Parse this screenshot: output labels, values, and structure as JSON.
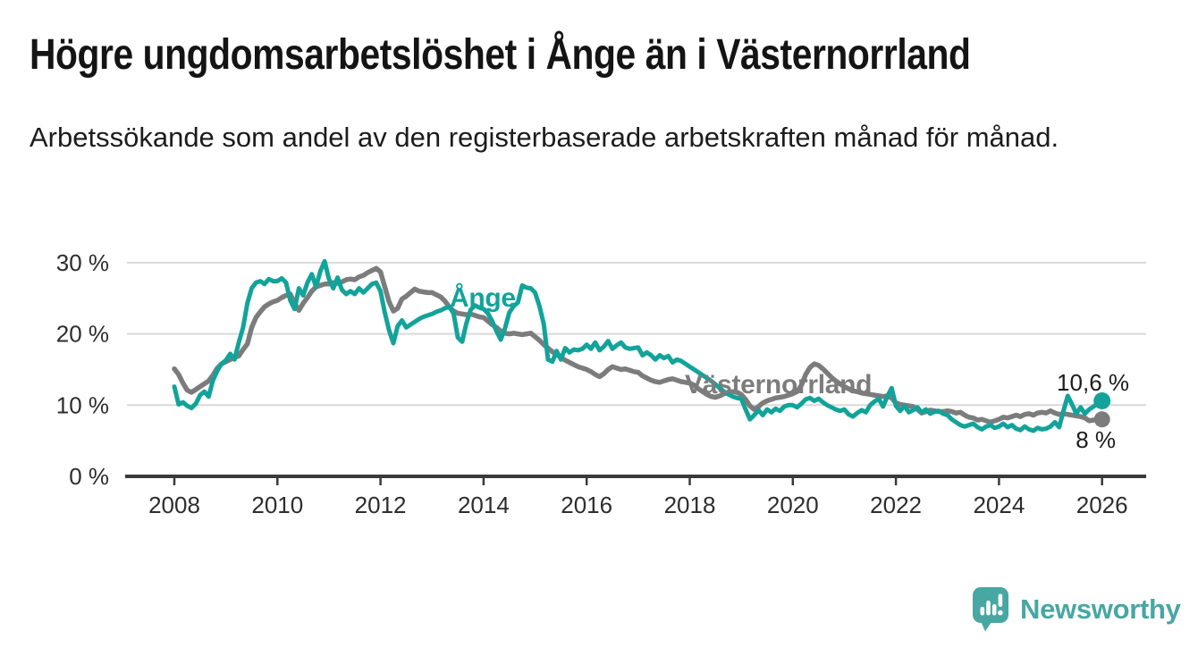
{
  "header": {
    "title": "Högre ungdomsarbetslöshet i Ånge än i Västernorrland",
    "subtitle": "Arbetssökande som andel av den registerbaserade arbetskraften månad för månad."
  },
  "chart_data": {
    "type": "line",
    "title": "Högre ungdomsarbetslöshet i Ånge än i Västernorrland",
    "unit": "%",
    "grid": "horizontal",
    "legend": "inline-series-labels",
    "colors": {
      "ange": "#12a39a",
      "vasternorrland": "#7c7c7c",
      "gridline": "#d9d9d9",
      "axis": "#3a3a3a",
      "tick_text": "#2d2d2d",
      "value_text": "#1c1c1c"
    },
    "x_axis": {
      "start_year": 2008,
      "end_year": 2026,
      "points_per_year": 12,
      "tick_years": [
        2008,
        2010,
        2012,
        2014,
        2016,
        2018,
        2020,
        2022,
        2024,
        2026
      ]
    },
    "y_axis": {
      "range": [
        0,
        32
      ],
      "ticks": [
        {
          "v": 0,
          "label": "0 %"
        },
        {
          "v": 10,
          "label": "10 %"
        },
        {
          "v": 20,
          "label": "20 %"
        },
        {
          "v": 30,
          "label": "30 %"
        }
      ]
    },
    "series": [
      {
        "name": "Ånge",
        "color": "#12a39a",
        "end_label": "10,6 %",
        "last_value": 10.6,
        "values": [
          12.6,
          10.1,
          10.4,
          9.9,
          9.6,
          10.2,
          11.4,
          11.9,
          11.2,
          13.5,
          14.8,
          15.8,
          16.3,
          17.2,
          16.4,
          18.8,
          20.9,
          24.3,
          26.4,
          27.2,
          27.4,
          27.0,
          27.7,
          27.4,
          27.4,
          27.8,
          27.2,
          24.7,
          23.5,
          26.4,
          25.4,
          27.2,
          28.4,
          26.6,
          28.8,
          30.2,
          27.7,
          26.4,
          27.9,
          26.2,
          25.6,
          26.0,
          25.6,
          26.4,
          25.8,
          26.4,
          27.0,
          27.2,
          26.0,
          23.0,
          20.5,
          18.7,
          21.1,
          21.9,
          20.9,
          21.3,
          21.7,
          22.1,
          22.4,
          22.6,
          22.8,
          23.1,
          23.3,
          23.6,
          23.8,
          22.9,
          19.5,
          18.9,
          21.5,
          23.4,
          24.0,
          23.7,
          23.5,
          22.9,
          21.8,
          20.4,
          19.2,
          20.8,
          23.0,
          23.9,
          24.4,
          26.8,
          26.5,
          26.4,
          25.8,
          23.9,
          21.4,
          16.4,
          16.1,
          17.6,
          16.4,
          18.0,
          17.4,
          17.8,
          17.7,
          17.9,
          18.5,
          17.9,
          18.8,
          17.7,
          18.2,
          19.0,
          17.9,
          18.4,
          18.8,
          18.1,
          17.9,
          18.0,
          18.1,
          17.0,
          17.4,
          17.0,
          16.4,
          17.0,
          16.6,
          16.9,
          16.0,
          16.4,
          16.2,
          15.8,
          15.4,
          15.0,
          14.6,
          14.2,
          13.8,
          13.4,
          12.9,
          12.4,
          11.9,
          11.5,
          11.2,
          11.0,
          10.9,
          9.4,
          8.0,
          8.6,
          9.3,
          8.6,
          9.4,
          9.0,
          9.5,
          9.2,
          9.8,
          10.0,
          10.0,
          9.7,
          10.2,
          10.8,
          11.0,
          10.6,
          10.9,
          10.4,
          10.0,
          9.7,
          9.4,
          9.2,
          9.4,
          8.7,
          8.4,
          8.9,
          9.3,
          9.0,
          10.0,
          10.5,
          10.9,
          9.8,
          11.2,
          12.4,
          9.9,
          9.2,
          9.9,
          9.0,
          9.3,
          9.7,
          9.0,
          9.4,
          8.8,
          9.1,
          9.2,
          8.8,
          8.6,
          8.0,
          7.6,
          7.2,
          7.0,
          7.2,
          7.4,
          6.9,
          6.6,
          7.0,
          7.2,
          6.8,
          7.0,
          7.4,
          6.9,
          7.2,
          6.7,
          6.5,
          7.0,
          6.6,
          6.4,
          6.8,
          6.6,
          6.7,
          7.0,
          7.6,
          6.9,
          9.2,
          11.3,
          10.1,
          8.8,
          9.7,
          8.8,
          9.4,
          9.8,
          10.2,
          10.6
        ]
      },
      {
        "name": "Västernorrland",
        "color": "#7c7c7c",
        "end_label": "8 %",
        "last_value": 8.0,
        "values": [
          15.1,
          14.3,
          13.1,
          12.1,
          11.8,
          12.2,
          12.6,
          13.0,
          13.4,
          14.2,
          15.2,
          15.8,
          16.1,
          16.4,
          16.7,
          16.9,
          17.8,
          18.6,
          20.9,
          22.3,
          23.1,
          23.8,
          24.2,
          24.5,
          24.7,
          25.1,
          25.4,
          25.6,
          24.3,
          23.3,
          24.3,
          25.1,
          26.0,
          26.6,
          26.8,
          27.0,
          27.0,
          27.2,
          27.1,
          27.3,
          27.6,
          27.7,
          27.6,
          28.0,
          28.2,
          28.6,
          28.9,
          29.2,
          28.7,
          26.6,
          24.5,
          23.2,
          23.6,
          24.9,
          25.3,
          25.8,
          26.3,
          26.0,
          25.9,
          25.8,
          25.8,
          25.5,
          25.2,
          24.6,
          23.8,
          23.2,
          22.9,
          22.8,
          22.7,
          22.8,
          22.6,
          22.4,
          22.3,
          21.8,
          21.3,
          20.9,
          20.4,
          20.1,
          20.0,
          20.1,
          20.0,
          19.9,
          20.0,
          20.1,
          19.6,
          19.1,
          18.5,
          18.0,
          17.5,
          17.1,
          16.7,
          16.3,
          16.0,
          15.7,
          15.4,
          15.2,
          15.0,
          14.7,
          14.3,
          14.0,
          14.4,
          15.0,
          15.4,
          15.2,
          15.0,
          15.1,
          14.9,
          14.7,
          14.6,
          14.1,
          13.8,
          13.5,
          13.3,
          13.2,
          13.4,
          13.6,
          13.7,
          13.5,
          13.3,
          13.2,
          13.1,
          12.8,
          12.3,
          11.9,
          11.5,
          11.2,
          11.1,
          11.3,
          11.6,
          11.8,
          11.9,
          11.8,
          11.5,
          10.8,
          9.9,
          9.4,
          9.8,
          10.3,
          10.6,
          10.8,
          11.0,
          11.1,
          11.2,
          11.4,
          11.6,
          11.9,
          12.8,
          14.3,
          15.3,
          15.8,
          15.6,
          15.1,
          14.5,
          13.9,
          13.4,
          13.0,
          12.6,
          12.3,
          12.0,
          11.9,
          11.7,
          11.6,
          11.5,
          11.4,
          11.3,
          11.2,
          11.3,
          11.0,
          10.3,
          10.1,
          10.0,
          9.9,
          9.8,
          9.4,
          8.9,
          9.1,
          9.3,
          9.2,
          9.1,
          9.1,
          9.2,
          9.1,
          8.9,
          9.0,
          8.6,
          8.3,
          8.2,
          7.9,
          8.0,
          7.8,
          7.6,
          7.8,
          8.0,
          8.3,
          8.2,
          8.4,
          8.6,
          8.4,
          8.7,
          8.8,
          8.6,
          8.9,
          9.0,
          8.9,
          9.2,
          8.9,
          8.7,
          8.8,
          8.7,
          8.6,
          8.5,
          8.4,
          8.2,
          7.8,
          7.9,
          8.0,
          8.0
        ]
      }
    ]
  },
  "footer": {
    "brand": "Newsworthy",
    "brand_color": "#48a7a2",
    "logo_icon": "newsworthy-bubble-bar-chart-icon"
  }
}
